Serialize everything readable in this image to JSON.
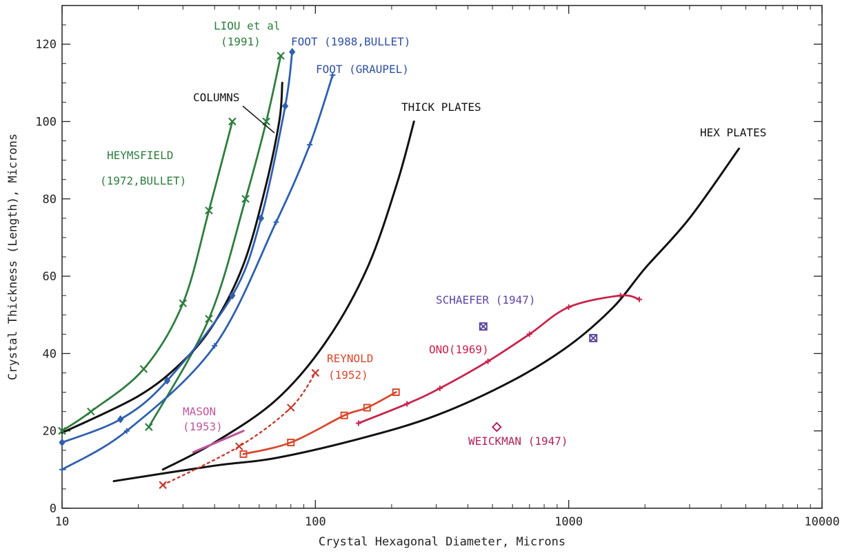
{
  "chart_data": {
    "type": "line",
    "xscale": "log",
    "xlim": [
      10,
      10000
    ],
    "ylim": [
      0,
      130
    ],
    "xlabel": "Crystal Hexagonal Diameter, Microns",
    "ylabel": "Crystal Thickness (Length), Microns",
    "xticks": [
      {
        "value": 10,
        "label": "10"
      },
      {
        "value": 100,
        "label": "100"
      },
      {
        "value": 1000,
        "label": "1000"
      },
      {
        "value": 10000,
        "label": "10000"
      }
    ],
    "yticks": [
      {
        "value": 0,
        "label": "0"
      },
      {
        "value": 20,
        "label": "20"
      },
      {
        "value": 40,
        "label": "40"
      },
      {
        "value": 60,
        "label": "60"
      },
      {
        "value": 80,
        "label": "80"
      },
      {
        "value": 100,
        "label": "100"
      },
      {
        "value": 120,
        "label": "120"
      }
    ],
    "series": [
      {
        "key": "heymsfield",
        "color": "#2e7d3e",
        "marker": "x",
        "markers": true,
        "points": [
          [
            10,
            20
          ],
          [
            13,
            25
          ],
          [
            21,
            36
          ],
          [
            30,
            53
          ],
          [
            38,
            77
          ],
          [
            47,
            100
          ]
        ]
      },
      {
        "key": "liou",
        "color": "#2e7d3e",
        "marker": "x",
        "markers": true,
        "points": [
          [
            22,
            21
          ],
          [
            38,
            49
          ],
          [
            53,
            80
          ],
          [
            64,
            100
          ],
          [
            73,
            117
          ]
        ]
      },
      {
        "key": "columns",
        "color": "#111111",
        "marker": "none",
        "markers": false,
        "points": [
          [
            10,
            19.5
          ],
          [
            20,
            29
          ],
          [
            30,
            38
          ],
          [
            40,
            48
          ],
          [
            52,
            63
          ],
          [
            63,
            82
          ],
          [
            72,
            100
          ],
          [
            74,
            110
          ]
        ]
      },
      {
        "key": "foot-bullet",
        "color": "#2f5fae",
        "marker": "diamond",
        "markers": true,
        "points": [
          [
            10,
            17
          ],
          [
            17,
            23
          ],
          [
            26,
            33
          ],
          [
            47,
            55
          ],
          [
            61,
            75
          ],
          [
            76,
            104
          ],
          [
            81,
            118
          ]
        ]
      },
      {
        "key": "foot-graupel",
        "color": "#2f5fae",
        "marker": "plus",
        "markers": true,
        "points": [
          [
            10,
            10
          ],
          [
            18,
            20
          ],
          [
            40,
            42
          ],
          [
            70,
            74
          ],
          [
            95,
            94
          ],
          [
            117,
            112
          ]
        ]
      },
      {
        "key": "thick-plates",
        "color": "#111111",
        "marker": "none",
        "markers": false,
        "points": [
          [
            25,
            10
          ],
          [
            40,
            17
          ],
          [
            70,
            28
          ],
          [
            110,
            43
          ],
          [
            160,
            62
          ],
          [
            210,
            84
          ],
          [
            245,
            100
          ]
        ]
      },
      {
        "key": "hex-plates",
        "color": "#111111",
        "marker": "none",
        "markers": false,
        "points": [
          [
            16,
            7
          ],
          [
            40,
            11
          ],
          [
            70,
            13
          ],
          [
            150,
            18
          ],
          [
            300,
            24
          ],
          [
            600,
            33
          ],
          [
            1000,
            42
          ],
          [
            1500,
            52
          ],
          [
            2000,
            62
          ],
          [
            3000,
            75
          ],
          [
            4700,
            93
          ]
        ]
      },
      {
        "key": "mason",
        "color": "#c0569a",
        "marker": "none",
        "markers": false,
        "points": [
          [
            33,
            14.5
          ],
          [
            52,
            20
          ]
        ]
      },
      {
        "key": "reynold-dotted",
        "color": "#c63a2e",
        "marker": "x",
        "markers": true,
        "dashed": true,
        "points": [
          [
            25,
            6
          ],
          [
            50,
            16
          ],
          [
            80,
            26
          ],
          [
            100,
            35
          ]
        ]
      },
      {
        "key": "reynold",
        "color": "#d8482c",
        "marker": "square",
        "markers": true,
        "points": [
          [
            52,
            14
          ],
          [
            80,
            17
          ],
          [
            130,
            24
          ],
          [
            160,
            26
          ],
          [
            208,
            30
          ]
        ]
      },
      {
        "key": "ono",
        "color": "#c8234c",
        "marker": "plus",
        "markers": true,
        "points": [
          [
            148,
            22
          ],
          [
            230,
            27
          ],
          [
            310,
            31
          ],
          [
            480,
            38
          ],
          [
            700,
            45
          ],
          [
            1000,
            52
          ],
          [
            1600,
            55
          ],
          [
            1900,
            54
          ]
        ]
      },
      {
        "key": "schaefer",
        "color": "#5c46a0",
        "marker": "xbox",
        "markers": true,
        "nolines": true,
        "points": [
          [
            460,
            47
          ],
          [
            1250,
            44
          ]
        ]
      },
      {
        "key": "weickman",
        "color": "#b0225c",
        "marker": "diamond-open",
        "markers": true,
        "nolines": true,
        "points": [
          [
            520,
            21
          ]
        ]
      }
    ],
    "annotations": {
      "liou": {
        "line1": "LIOU et al",
        "line2": "(1991)",
        "color": "#2e7d3e"
      },
      "foot_bullet": {
        "text": "FOOT (1988,BULLET)",
        "color": "#2f4fa0"
      },
      "foot_graupel": {
        "text": "FOOT (GRAUPEL)",
        "color": "#2f4fa0"
      },
      "columns": {
        "text": "COLUMNS",
        "color": "#111111"
      },
      "heymsfield": {
        "line1": "HEYMSFIELD",
        "line2": "(1972,BULLET)",
        "color": "#2e7d3e"
      },
      "thick_plates": {
        "text": "THICK PLATES",
        "color": "#111111"
      },
      "hex_plates": {
        "text": "HEX PLATES",
        "color": "#111111"
      },
      "schaefer": {
        "text": "SCHAEFER (1947)",
        "color": "#5c46a0"
      },
      "ono": {
        "text": "ONO(1969)",
        "color": "#c8234c"
      },
      "reynold": {
        "line1": "REYNOLD",
        "line2": "(1952)",
        "color": "#d8482c"
      },
      "mason": {
        "line1": "MASON",
        "line2": "(1953)",
        "color": "#c0569a"
      },
      "weickman": {
        "text": "WEICKMAN (1947)",
        "color": "#b0225c"
      }
    }
  }
}
